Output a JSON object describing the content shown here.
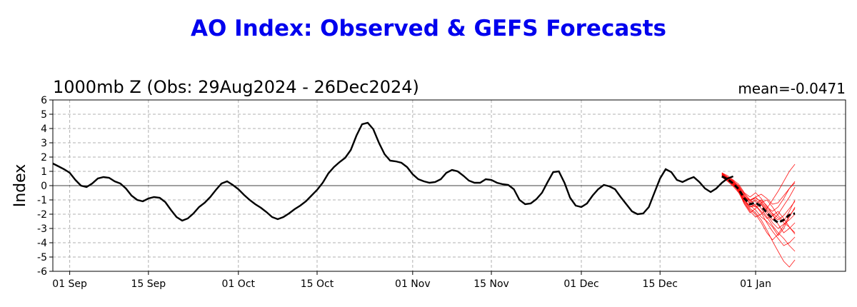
{
  "title": "AO Index: Observed & GEFS Forecasts",
  "subtitle_left": "1000mb Z (Obs: 29Aug2024 - 26Dec2024)",
  "subtitle_right": "mean=-0.0471",
  "colors": {
    "title": "#0000ee",
    "observed": "#000000",
    "ensemble": "#ff0000",
    "ensemble_mean": "#000000",
    "grid": "#b0b0b0"
  },
  "chart_data": {
    "type": "line",
    "title": "AO Index: Observed & GEFS Forecasts",
    "ylabel": "Index",
    "xlabel": "",
    "ylim": [
      -6,
      6
    ],
    "xlim_days": [
      0,
      141
    ],
    "grid": true,
    "yticks": [
      6,
      5,
      4,
      3,
      2,
      1,
      0,
      -1,
      -2,
      -3,
      -4,
      -5,
      -6
    ],
    "xticks": [
      {
        "label": "01 Sep",
        "day": 3
      },
      {
        "label": "15 Sep",
        "day": 17
      },
      {
        "label": "01 Oct",
        "day": 33
      },
      {
        "label": "15 Oct",
        "day": 47
      },
      {
        "label": "01 Nov",
        "day": 64
      },
      {
        "label": "15 Nov",
        "day": 78
      },
      {
        "label": "01 Dec",
        "day": 94
      },
      {
        "label": "15 Dec",
        "day": 108
      },
      {
        "label": "01 Jan",
        "day": 125
      }
    ],
    "series": [
      {
        "role": "observed",
        "start_date": "2024-08-29",
        "values": [
          1.55,
          1.35,
          1.15,
          0.9,
          0.4,
          0.0,
          -0.1,
          0.15,
          0.5,
          0.6,
          0.55,
          0.3,
          0.15,
          -0.2,
          -0.7,
          -1.0,
          -1.1,
          -0.9,
          -0.8,
          -0.85,
          -1.15,
          -1.7,
          -2.2,
          -2.45,
          -2.3,
          -1.95,
          -1.5,
          -1.2,
          -0.8,
          -0.3,
          0.15,
          0.3,
          0.05,
          -0.25,
          -0.65,
          -1.0,
          -1.3,
          -1.55,
          -1.85,
          -2.2,
          -2.35,
          -2.2,
          -1.95,
          -1.65,
          -1.4,
          -1.1,
          -0.7,
          -0.3,
          0.2,
          0.85,
          1.3,
          1.65,
          1.95,
          2.5,
          3.5,
          4.3,
          4.4,
          3.95,
          3.0,
          2.2,
          1.75,
          1.7,
          1.6,
          1.3,
          0.8,
          0.45,
          0.3,
          0.2,
          0.25,
          0.45,
          0.9,
          1.1,
          1.0,
          0.7,
          0.35,
          0.2,
          0.2,
          0.45,
          0.4,
          0.2,
          0.1,
          0.05,
          -0.25,
          -1.0,
          -1.3,
          -1.25,
          -0.95,
          -0.5,
          0.25,
          0.95,
          1.0,
          0.2,
          -0.85,
          -1.4,
          -1.5,
          -1.25,
          -0.7,
          -0.25,
          0.05,
          -0.05,
          -0.25,
          -0.8,
          -1.3,
          -1.8,
          -2.0,
          -1.95,
          -1.5,
          -0.5,
          0.5,
          1.15,
          0.95,
          0.4,
          0.25,
          0.45,
          0.6,
          0.25,
          -0.2,
          -0.45,
          -0.2,
          0.2,
          0.5,
          0.65
        ]
      },
      {
        "role": "ensemble_mean",
        "start_date": "2024-12-26",
        "values": [
          0.65,
          0.45,
          0.15,
          -0.25,
          -0.9,
          -1.3,
          -1.2,
          -1.45,
          -1.9,
          -2.3,
          -2.6,
          -2.4,
          -2.05,
          -1.95
        ]
      }
    ],
    "ensemble_members": [
      [
        0.9,
        0.6,
        0.35,
        -0.05,
        -0.55,
        -1.0,
        -0.9,
        -1.1,
        -1.6,
        -1.95,
        -2.25,
        -2.6,
        -2.9,
        -3.3
      ],
      [
        0.8,
        0.55,
        0.2,
        -0.3,
        -1.1,
        -1.6,
        -1.9,
        -2.4,
        -3.1,
        -3.9,
        -4.6,
        -5.3,
        -5.7,
        -5.2
      ],
      [
        0.75,
        0.5,
        0.2,
        -0.2,
        -0.8,
        -1.1,
        -0.8,
        -0.6,
        -0.9,
        -1.3,
        -1.2,
        -0.7,
        -0.2,
        0.3
      ],
      [
        0.7,
        0.4,
        0.05,
        -0.4,
        -1.2,
        -1.8,
        -2.2,
        -2.0,
        -1.6,
        -1.0,
        -0.4,
        0.3,
        1.0,
        1.5
      ],
      [
        0.85,
        0.6,
        0.3,
        0.0,
        -0.6,
        -1.0,
        -1.4,
        -1.9,
        -2.6,
        -3.2,
        -3.7,
        -4.2,
        -4.0,
        -3.6
      ],
      [
        0.6,
        0.35,
        0.0,
        -0.35,
        -1.0,
        -1.5,
        -1.3,
        -1.0,
        -1.4,
        -2.0,
        -2.7,
        -3.3,
        -3.0,
        -2.6
      ],
      [
        0.9,
        0.7,
        0.4,
        0.1,
        -0.5,
        -0.8,
        -0.5,
        -0.9,
        -1.5,
        -1.8,
        -1.5,
        -0.9,
        -0.2,
        0.2
      ],
      [
        0.7,
        0.45,
        0.1,
        -0.3,
        -1.0,
        -1.4,
        -1.7,
        -2.2,
        -2.5,
        -2.9,
        -3.5,
        -3.0,
        -2.2,
        -1.5
      ],
      [
        0.65,
        0.4,
        0.1,
        -0.45,
        -1.3,
        -1.9,
        -1.6,
        -1.3,
        -1.8,
        -2.4,
        -2.0,
        -1.4,
        -0.8,
        -0.1
      ],
      [
        0.8,
        0.55,
        0.25,
        -0.15,
        -0.7,
        -1.1,
        -1.1,
        -1.6,
        -2.2,
        -2.8,
        -3.3,
        -3.7,
        -4.2,
        -4.6
      ],
      [
        0.75,
        0.5,
        0.15,
        -0.25,
        -0.9,
        -1.2,
        -1.0,
        -1.3,
        -2.0,
        -2.6,
        -3.0,
        -2.7,
        -2.4,
        -2.0
      ],
      [
        0.85,
        0.6,
        0.3,
        -0.1,
        -0.7,
        -1.3,
        -1.5,
        -1.2,
        -1.0,
        -1.5,
        -2.1,
        -2.5,
        -1.8,
        -1.0
      ],
      [
        0.7,
        0.45,
        0.1,
        -0.35,
        -1.1,
        -1.5,
        -1.4,
        -1.8,
        -2.3,
        -2.1,
        -1.8,
        -2.3,
        -2.9,
        -3.4
      ],
      [
        0.6,
        0.3,
        -0.05,
        -0.5,
        -1.2,
        -1.7,
        -2.0,
        -2.6,
        -3.3,
        -3.8,
        -3.4,
        -2.8,
        -2.1,
        -1.6
      ],
      [
        0.8,
        0.5,
        0.2,
        -0.2,
        -0.8,
        -1.0,
        -0.8,
        -1.2,
        -1.7,
        -2.1,
        -2.4,
        -2.1,
        -1.6,
        -1.1
      ]
    ]
  }
}
